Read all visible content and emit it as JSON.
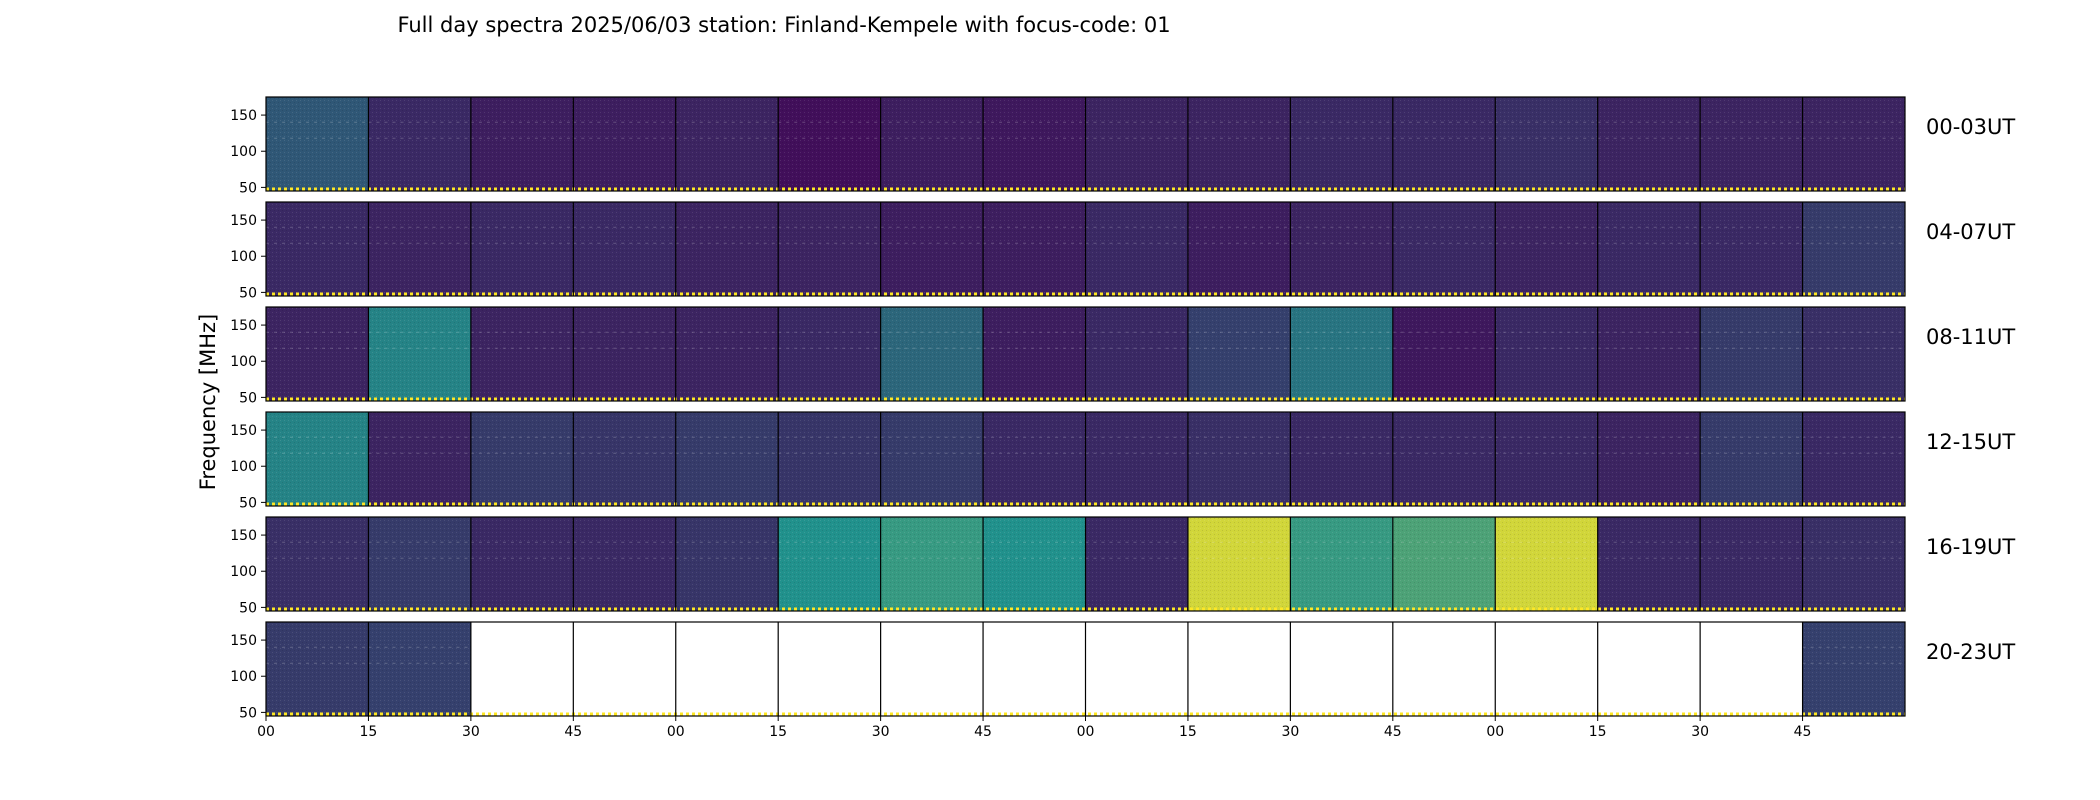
{
  "chart_data": {
    "type": "heatmap",
    "title": "Full day spectra 2025/06/03 station: Finland-Kempele with focus-code: 01",
    "ylabel": "Frequency [MHz]",
    "xlabel": "",
    "ylim": [
      45,
      175
    ],
    "y_ticks": [
      50,
      100,
      150
    ],
    "x_tick_labels": [
      "00",
      "15",
      "30",
      "45",
      "00",
      "15",
      "30",
      "45",
      "00",
      "15",
      "30",
      "45",
      "00",
      "15",
      "30",
      "45"
    ],
    "colormap": "viridis",
    "colors": {
      "low": "#440154",
      "mid": "#21918c",
      "high": "#fde725"
    },
    "rows": [
      {
        "label": "00-03UT",
        "panel_intensity": [
          0.3,
          0.14,
          0.1,
          0.1,
          0.12,
          0.05,
          0.1,
          0.08,
          0.12,
          0.12,
          0.14,
          0.14,
          0.16,
          0.12,
          0.12,
          0.12
        ]
      },
      {
        "label": "04-07UT",
        "panel_intensity": [
          0.14,
          0.12,
          0.14,
          0.14,
          0.12,
          0.12,
          0.1,
          0.1,
          0.14,
          0.1,
          0.12,
          0.14,
          0.12,
          0.14,
          0.14,
          0.2
        ]
      },
      {
        "label": "08-11UT",
        "panel_intensity": [
          0.12,
          0.45,
          0.12,
          0.12,
          0.12,
          0.14,
          0.35,
          0.1,
          0.14,
          0.22,
          0.4,
          0.08,
          0.14,
          0.12,
          0.2,
          0.16
        ]
      },
      {
        "label": "12-15UT",
        "panel_intensity": [
          0.45,
          0.12,
          0.2,
          0.18,
          0.2,
          0.18,
          0.2,
          0.14,
          0.14,
          0.16,
          0.14,
          0.14,
          0.14,
          0.12,
          0.2,
          0.14
        ]
      },
      {
        "label": "16-19UT",
        "panel_intensity": [
          0.16,
          0.2,
          0.14,
          0.14,
          0.18,
          0.5,
          0.55,
          0.5,
          0.14,
          0.9,
          0.55,
          0.6,
          0.9,
          0.14,
          0.14,
          0.16
        ]
      },
      {
        "label": "20-23UT",
        "panel_intensity": [
          0.2,
          0.22,
          null,
          null,
          null,
          null,
          null,
          null,
          null,
          null,
          null,
          null,
          null,
          null,
          null,
          0.22
        ]
      }
    ]
  }
}
